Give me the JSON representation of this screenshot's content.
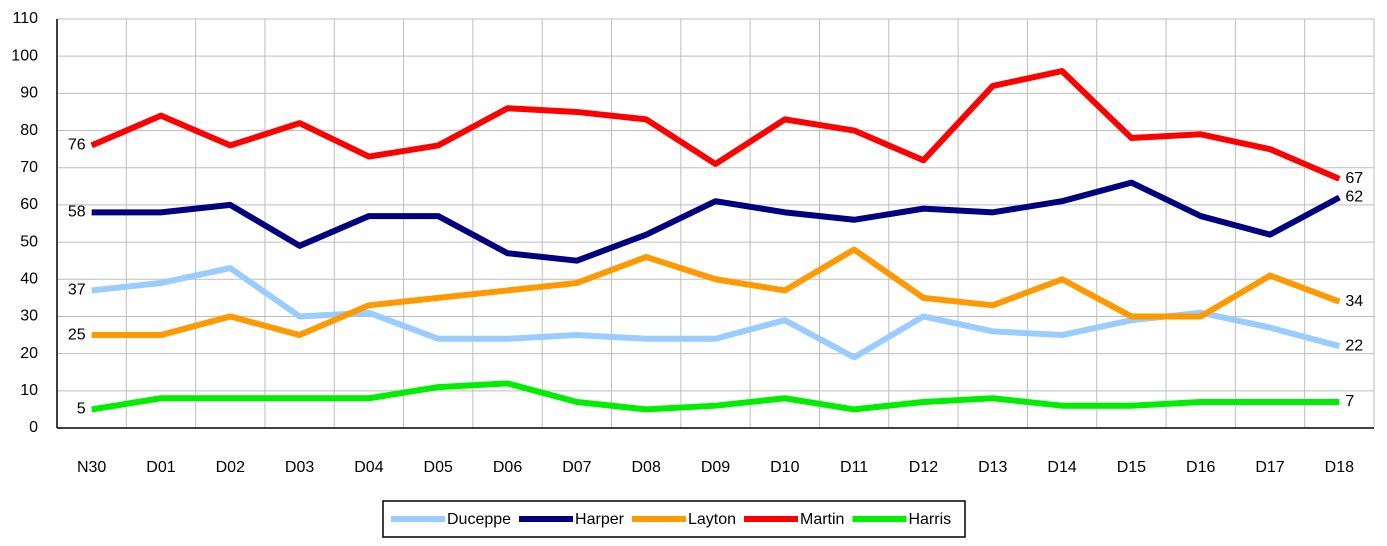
{
  "chart_data": {
    "type": "line",
    "categories": [
      "N30",
      "D01",
      "D02",
      "D03",
      "D04",
      "D05",
      "D06",
      "D07",
      "D08",
      "D09",
      "D10",
      "D11",
      "D12",
      "D13",
      "D14",
      "D15",
      "D16",
      "D17",
      "D18"
    ],
    "series": [
      {
        "name": "Duceppe",
        "color": "#99ccff",
        "values": [
          37,
          39,
          43,
          30,
          31,
          24,
          24,
          25,
          24,
          24,
          29,
          19,
          30,
          26,
          25,
          29,
          31,
          27,
          22
        ]
      },
      {
        "name": "Harper",
        "color": "#000080",
        "values": [
          58,
          58,
          60,
          49,
          57,
          57,
          47,
          45,
          52,
          61,
          58,
          56,
          59,
          58,
          61,
          66,
          57,
          52,
          62
        ]
      },
      {
        "name": "Layton",
        "color": "#ff9900",
        "values": [
          25,
          25,
          30,
          25,
          33,
          35,
          37,
          39,
          46,
          40,
          37,
          48,
          35,
          33,
          40,
          30,
          30,
          41,
          34
        ]
      },
      {
        "name": "Martin",
        "color": "#ff0000",
        "values": [
          76,
          84,
          76,
          82,
          73,
          76,
          86,
          85,
          83,
          71,
          83,
          80,
          72,
          92,
          96,
          78,
          79,
          75,
          67
        ]
      },
      {
        "name": "Harris",
        "color": "#00ee00",
        "values": [
          5,
          8,
          8,
          8,
          8,
          11,
          12,
          7,
          5,
          6,
          8,
          5,
          7,
          8,
          6,
          6,
          7,
          7,
          7
        ]
      }
    ],
    "ylim": [
      0,
      110
    ],
    "yticks": [
      0,
      10,
      20,
      30,
      40,
      50,
      60,
      70,
      80,
      90,
      100,
      110
    ],
    "grid": true,
    "data_labels": "ends",
    "legend": "bottom"
  }
}
